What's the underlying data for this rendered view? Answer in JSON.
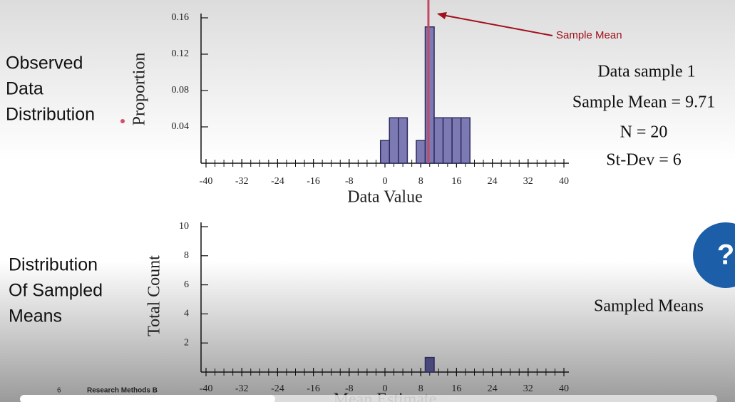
{
  "chart_data": [
    {
      "type": "histogram",
      "ylabel": "Proportion",
      "xlabel": "Data Value",
      "bins": [
        -1,
        1,
        3,
        5,
        7,
        9,
        11,
        13,
        15,
        17,
        19
      ],
      "values": [
        0.025,
        0.05,
        0.05,
        0,
        0.025,
        0.15,
        0.05,
        0.05,
        0.05,
        0.05
      ],
      "color": "#7c79b3",
      "xlim": [
        -40,
        40
      ],
      "xticks": [
        -40,
        -32,
        -24,
        -16,
        -8,
        0,
        8,
        16,
        24,
        32,
        40
      ],
      "ylim": [
        0,
        0.16
      ],
      "yticks": [
        0.04,
        0.08,
        0.12,
        0.16
      ],
      "mean_line": 9.71,
      "mean_line_color": "#c24a63",
      "annotation": "Sample Mean"
    },
    {
      "type": "histogram",
      "ylabel": "Total Count",
      "xlabel": "Mean Estimate",
      "bins": [
        9,
        11
      ],
      "values": [
        1
      ],
      "color": "#4a4878",
      "xlim": [
        -40,
        40
      ],
      "xticks": [
        -40,
        -32,
        -24,
        -16,
        -8,
        0,
        8,
        16,
        24,
        32,
        40
      ],
      "ylim": [
        0,
        10
      ],
      "yticks": [
        2,
        4,
        6,
        8,
        10
      ]
    }
  ],
  "side_labels": [
    [
      "Observed",
      "Data",
      "Distribution"
    ],
    [
      "Distribution",
      "Of Sampled",
      "Means"
    ]
  ],
  "info": [
    "Data sample 1",
    "Sample Mean = 9.71",
    "N = 20",
    "St-Dev = 6"
  ],
  "sampled_means_label": "Sampled Means",
  "footer": {
    "page": "6",
    "title": "Research Methods B"
  },
  "help_button": "?"
}
